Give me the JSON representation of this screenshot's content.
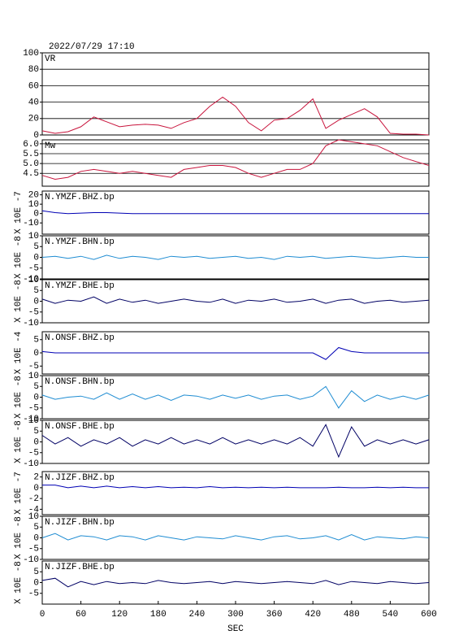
{
  "chart_data": [
    {
      "type": "line",
      "title": "2022/07/29 17:10",
      "label": "VR",
      "color": "#c8143c",
      "grid": true,
      "x": [
        0,
        20,
        40,
        60,
        80,
        100,
        120,
        140,
        160,
        180,
        200,
        220,
        240,
        260,
        280,
        300,
        320,
        340,
        360,
        380,
        400,
        420,
        440,
        460,
        480,
        500,
        520,
        540,
        560,
        580,
        600
      ],
      "values": [
        5,
        2,
        4,
        10,
        22,
        16,
        10,
        12,
        13,
        12,
        8,
        15,
        20,
        35,
        46,
        35,
        15,
        5,
        18,
        20,
        30,
        44,
        8,
        18,
        25,
        32,
        22,
        2,
        1,
        1,
        0
      ],
      "xlim": [
        0,
        600
      ],
      "ylim": [
        0,
        100
      ],
      "yticks": [
        0,
        20,
        40,
        60,
        80,
        100
      ]
    },
    {
      "type": "line",
      "label": "Mw",
      "color": "#c8143c",
      "grid": true,
      "x": [
        0,
        20,
        40,
        60,
        80,
        100,
        120,
        140,
        160,
        180,
        200,
        220,
        240,
        260,
        280,
        300,
        320,
        340,
        360,
        380,
        400,
        420,
        440,
        460,
        480,
        500,
        520,
        540,
        560,
        580,
        600
      ],
      "values": [
        4.4,
        4.2,
        4.3,
        4.6,
        4.7,
        4.6,
        4.5,
        4.6,
        4.5,
        4.4,
        4.3,
        4.7,
        4.8,
        4.9,
        4.9,
        4.8,
        4.5,
        4.3,
        4.5,
        4.7,
        4.7,
        5.0,
        5.9,
        6.2,
        6.1,
        6.0,
        5.9,
        5.6,
        5.3,
        5.1,
        4.9
      ],
      "xlim": [
        0,
        600
      ],
      "ylim": [
        3.85,
        6.2
      ],
      "yticks": [
        {
          "value": 4.5,
          "label": "4.5"
        },
        {
          "value": 5,
          "label": "5.0"
        },
        {
          "value": 5.5,
          "label": "5.5"
        },
        {
          "value": 6,
          "label": "6.0"
        }
      ]
    },
    {
      "type": "line",
      "label": "N.YMZF.BHZ.bp",
      "unit": "X 10E -7",
      "color": "#0000b4",
      "x": [
        0,
        20,
        40,
        60,
        80,
        100,
        120,
        140,
        160,
        180,
        200,
        220,
        240,
        260,
        280,
        300,
        320,
        340,
        360,
        380,
        400,
        420,
        440,
        460,
        480,
        500,
        520,
        540,
        560,
        580,
        600
      ],
      "values": [
        3,
        1,
        0,
        0.5,
        1,
        1,
        0.5,
        0,
        0,
        0,
        0,
        0,
        0,
        0,
        0,
        0,
        0,
        0,
        0,
        0,
        0,
        0,
        0,
        0,
        0,
        0,
        0,
        0,
        0,
        0,
        0
      ],
      "xlim": [
        0,
        600
      ],
      "ylim": [
        -22,
        24
      ],
      "yticks": [
        -10,
        0,
        10,
        20
      ]
    },
    {
      "type": "line",
      "label": "N.YMZF.BHN.bp",
      "unit": "X 10E -8",
      "color": "#1e8cd2",
      "x": [
        0,
        20,
        40,
        60,
        80,
        100,
        120,
        140,
        160,
        180,
        200,
        220,
        240,
        260,
        280,
        300,
        320,
        340,
        360,
        380,
        400,
        420,
        440,
        460,
        480,
        500,
        520,
        540,
        560,
        580,
        600
      ],
      "values": [
        0,
        0.5,
        -0.5,
        0.5,
        -1,
        1,
        -0.5,
        0.5,
        0,
        -1,
        0.5,
        0,
        0.5,
        -0.5,
        0,
        0.5,
        -0.5,
        0,
        -1,
        0.5,
        0,
        0.5,
        -0.5,
        0,
        0.5,
        0,
        -0.5,
        0,
        0.5,
        0,
        0
      ],
      "xlim": [
        0,
        600
      ],
      "ylim": [
        -10,
        10
      ],
      "yticks": [
        -10,
        -5,
        0,
        5,
        10
      ]
    },
    {
      "type": "line",
      "label": "N.YMZF.BHE.bp",
      "unit": "X 10E -8",
      "color": "#000064",
      "x": [
        0,
        20,
        40,
        60,
        80,
        100,
        120,
        140,
        160,
        180,
        200,
        220,
        240,
        260,
        280,
        300,
        320,
        340,
        360,
        380,
        400,
        420,
        440,
        460,
        480,
        500,
        520,
        540,
        560,
        580,
        600
      ],
      "values": [
        1,
        -1,
        0.5,
        0,
        2,
        -1,
        1,
        -0.5,
        0.5,
        -1,
        0,
        1,
        0,
        -0.5,
        1,
        -1,
        0.5,
        0,
        1,
        -0.5,
        0,
        1,
        -1,
        0.5,
        1,
        -1,
        0,
        0.5,
        -0.5,
        0,
        0.5
      ],
      "xlim": [
        0,
        600
      ],
      "ylim": [
        -10,
        10
      ],
      "yticks": [
        -10,
        -5,
        0,
        5,
        10
      ]
    },
    {
      "type": "line",
      "label": "N.ONSF.BHZ.bp",
      "unit": "X 10E -4",
      "color": "#0000b4",
      "x": [
        0,
        20,
        40,
        60,
        80,
        100,
        120,
        140,
        160,
        180,
        200,
        220,
        240,
        260,
        280,
        300,
        320,
        340,
        360,
        380,
        400,
        420,
        440,
        460,
        480,
        500,
        520,
        540,
        560,
        580,
        600
      ],
      "values": [
        0.5,
        0,
        0,
        0,
        0,
        0,
        0,
        0,
        0,
        0,
        0,
        0,
        0,
        0,
        0,
        0,
        0,
        0,
        0,
        0,
        0,
        0,
        -2.5,
        2,
        0.5,
        0,
        0,
        0,
        0,
        0,
        0
      ],
      "xlim": [
        0,
        600
      ],
      "ylim": [
        -8,
        8
      ],
      "yticks": [
        -5,
        0,
        5
      ]
    },
    {
      "type": "line",
      "label": "N.ONSF.BHN.bp",
      "unit": "X 10E -8",
      "color": "#1e8cd2",
      "x": [
        0,
        20,
        40,
        60,
        80,
        100,
        120,
        140,
        160,
        180,
        200,
        220,
        240,
        260,
        280,
        300,
        320,
        340,
        360,
        380,
        400,
        420,
        440,
        460,
        480,
        500,
        520,
        540,
        560,
        580,
        600
      ],
      "values": [
        1,
        -1,
        0,
        0.5,
        -1,
        2,
        -1,
        1.5,
        -1,
        1,
        -1.5,
        1,
        0.5,
        -1,
        1,
        -0.5,
        1,
        -1,
        0.5,
        1,
        -1,
        0.5,
        5,
        -5,
        3,
        -2,
        1,
        -1,
        0.5,
        -1,
        1
      ],
      "xlim": [
        0,
        600
      ],
      "ylim": [
        -10,
        10
      ],
      "yticks": [
        -10,
        -5,
        0,
        5,
        10
      ]
    },
    {
      "type": "line",
      "label": "N.ONSF.BHE.bp",
      "unit": "X 10E -8",
      "color": "#000064",
      "x": [
        0,
        20,
        40,
        60,
        80,
        100,
        120,
        140,
        160,
        180,
        200,
        220,
        240,
        260,
        280,
        300,
        320,
        340,
        360,
        380,
        400,
        420,
        440,
        460,
        480,
        500,
        520,
        540,
        560,
        580,
        600
      ],
      "values": [
        3,
        -1,
        2,
        -2,
        1,
        -1,
        2,
        -2,
        1,
        -1,
        2,
        -1,
        1,
        -1,
        2,
        -1,
        1,
        -1,
        1,
        -1,
        2,
        -2,
        8,
        -7,
        7,
        -2,
        1,
        -1,
        1,
        -1,
        1
      ],
      "xlim": [
        0,
        600
      ],
      "ylim": [
        -10,
        10
      ],
      "yticks": [
        -10,
        -5,
        0,
        5,
        10
      ]
    },
    {
      "type": "line",
      "label": "N.JIZF.BHZ.bp",
      "unit": "X 10E -7",
      "color": "#0000b4",
      "x": [
        0,
        20,
        40,
        60,
        80,
        100,
        120,
        140,
        160,
        180,
        200,
        220,
        240,
        260,
        280,
        300,
        320,
        340,
        360,
        380,
        400,
        420,
        440,
        460,
        480,
        500,
        520,
        540,
        560,
        580,
        600
      ],
      "values": [
        0.5,
        0.5,
        0,
        0.3,
        0,
        0.3,
        0,
        0.2,
        0,
        0.2,
        0,
        0.1,
        0,
        0.2,
        0,
        0.1,
        0,
        0.1,
        0,
        0.1,
        0,
        0,
        0,
        0.1,
        0,
        0,
        0.1,
        0,
        0.1,
        0,
        0
      ],
      "xlim": [
        0,
        600
      ],
      "ylim": [
        -5,
        3
      ],
      "yticks": [
        -4,
        -2,
        0,
        2
      ]
    },
    {
      "type": "line",
      "label": "N.JIZF.BHN.bp",
      "unit": "X 10E -8",
      "color": "#1e8cd2",
      "x": [
        0,
        20,
        40,
        60,
        80,
        100,
        120,
        140,
        160,
        180,
        200,
        220,
        240,
        260,
        280,
        300,
        320,
        340,
        360,
        380,
        400,
        420,
        440,
        460,
        480,
        500,
        520,
        540,
        560,
        580,
        600
      ],
      "values": [
        0,
        2,
        -1,
        1,
        0.5,
        -1,
        1,
        0.5,
        -1,
        1,
        0,
        -1,
        0.5,
        0,
        -0.5,
        1,
        0,
        -1,
        0.5,
        1,
        -0.5,
        0,
        1,
        -1,
        1.5,
        -1,
        0.5,
        0,
        -0.5,
        0.5,
        0
      ],
      "xlim": [
        0,
        600
      ],
      "ylim": [
        -10,
        10
      ],
      "yticks": [
        -10,
        -5,
        0,
        5,
        10
      ]
    },
    {
      "type": "line",
      "label": "N.JIZF.BHE.bp",
      "unit": "X 10E -8",
      "color": "#000064",
      "x": [
        0,
        20,
        40,
        60,
        80,
        100,
        120,
        140,
        160,
        180,
        200,
        220,
        240,
        260,
        280,
        300,
        320,
        340,
        360,
        380,
        400,
        420,
        440,
        460,
        480,
        500,
        520,
        540,
        560,
        580,
        600
      ],
      "values": [
        1,
        2,
        -2,
        0.5,
        -1,
        0.5,
        -0.5,
        0,
        -0.5,
        1,
        0,
        -0.5,
        0,
        0.5,
        -0.5,
        0.5,
        0,
        -0.5,
        0,
        0.5,
        0,
        -0.5,
        1,
        -1,
        0.5,
        0,
        -0.5,
        0.5,
        0,
        -0.5,
        0
      ],
      "xlim": [
        0,
        600
      ],
      "ylim": [
        -10,
        10
      ],
      "yticks": [
        -5,
        0,
        5
      ],
      "xticks": [
        0,
        60,
        120,
        180,
        240,
        300,
        360,
        420,
        480,
        540,
        600
      ],
      "xlabel": "SEC"
    }
  ]
}
